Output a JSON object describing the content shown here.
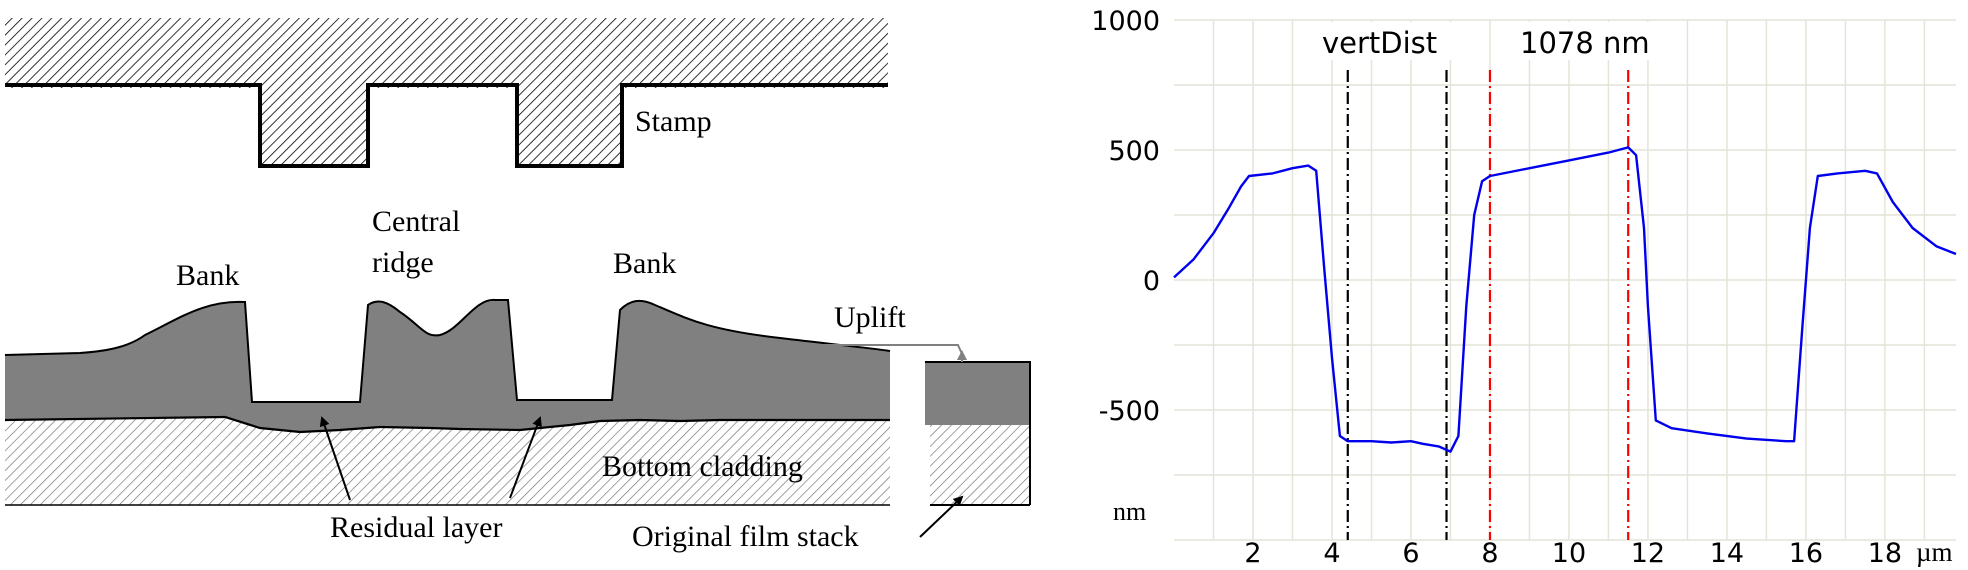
{
  "diagram": {
    "labels": {
      "stamp": "Stamp",
      "central_ridge_line1": "Central",
      "central_ridge_line2": "ridge",
      "bank_left": "Bank",
      "bank_right": "Bank",
      "uplift": "Uplift",
      "bottom_cladding": "Bottom cladding",
      "residual_layer": "Residual layer",
      "original_film_stack": "Original film stack"
    },
    "colors": {
      "film": "#808080",
      "stroke": "#000000",
      "hatch": "#000000",
      "cladding_hatch": "#707070",
      "uplift_arrow": "#808080"
    }
  },
  "chart_data": {
    "type": "line",
    "xlabel": "",
    "ylabel": "",
    "x_unit_label": "µm",
    "y_unit_label": "nm",
    "xlim": [
      0,
      19.8
    ],
    "ylim": [
      -1000,
      1000
    ],
    "x_ticks": [
      2,
      4,
      6,
      8,
      10,
      12,
      14,
      16,
      18
    ],
    "y_ticks": [
      {
        "value": 1000,
        "label": "1000"
      },
      {
        "value": 500,
        "label": "500"
      },
      {
        "value": 0,
        "label": "0"
      },
      {
        "value": -500,
        "label": "-500"
      }
    ],
    "grid": true,
    "annotation_label": "vertDist",
    "annotation_value": "1078 nm",
    "markers": [
      {
        "x": 4.4,
        "color": "#000000",
        "style": "dash-dot"
      },
      {
        "x": 6.9,
        "color": "#000000",
        "style": "dash-dot"
      },
      {
        "x": 8.0,
        "color": "#ff0000",
        "style": "dash-dot"
      },
      {
        "x": 11.5,
        "color": "#ff0000",
        "style": "dash-dot"
      }
    ],
    "series": [
      {
        "color": "#0000ee",
        "points": [
          [
            0.0,
            10
          ],
          [
            0.5,
            80
          ],
          [
            1.0,
            180
          ],
          [
            1.4,
            280
          ],
          [
            1.7,
            360
          ],
          [
            1.9,
            400
          ],
          [
            2.5,
            410
          ],
          [
            3.0,
            430
          ],
          [
            3.4,
            440
          ],
          [
            3.6,
            420
          ],
          [
            3.8,
            50
          ],
          [
            4.0,
            -300
          ],
          [
            4.2,
            -600
          ],
          [
            4.4,
            -620
          ],
          [
            5.0,
            -620
          ],
          [
            5.5,
            -625
          ],
          [
            6.0,
            -620
          ],
          [
            6.3,
            -630
          ],
          [
            6.7,
            -640
          ],
          [
            7.0,
            -660
          ],
          [
            7.2,
            -600
          ],
          [
            7.4,
            -100
          ],
          [
            7.6,
            250
          ],
          [
            7.8,
            380
          ],
          [
            8.0,
            400
          ],
          [
            9.0,
            430
          ],
          [
            10.0,
            460
          ],
          [
            11.0,
            490
          ],
          [
            11.5,
            510
          ],
          [
            11.7,
            480
          ],
          [
            11.9,
            200
          ],
          [
            12.0,
            -100
          ],
          [
            12.2,
            -540
          ],
          [
            12.6,
            -570
          ],
          [
            13.5,
            -590
          ],
          [
            14.5,
            -610
          ],
          [
            15.5,
            -620
          ],
          [
            15.7,
            -620
          ],
          [
            15.9,
            -200
          ],
          [
            16.1,
            200
          ],
          [
            16.3,
            400
          ],
          [
            16.8,
            410
          ],
          [
            17.5,
            420
          ],
          [
            17.8,
            410
          ],
          [
            18.2,
            300
          ],
          [
            18.7,
            200
          ],
          [
            19.3,
            130
          ],
          [
            19.8,
            100
          ]
        ]
      }
    ]
  }
}
